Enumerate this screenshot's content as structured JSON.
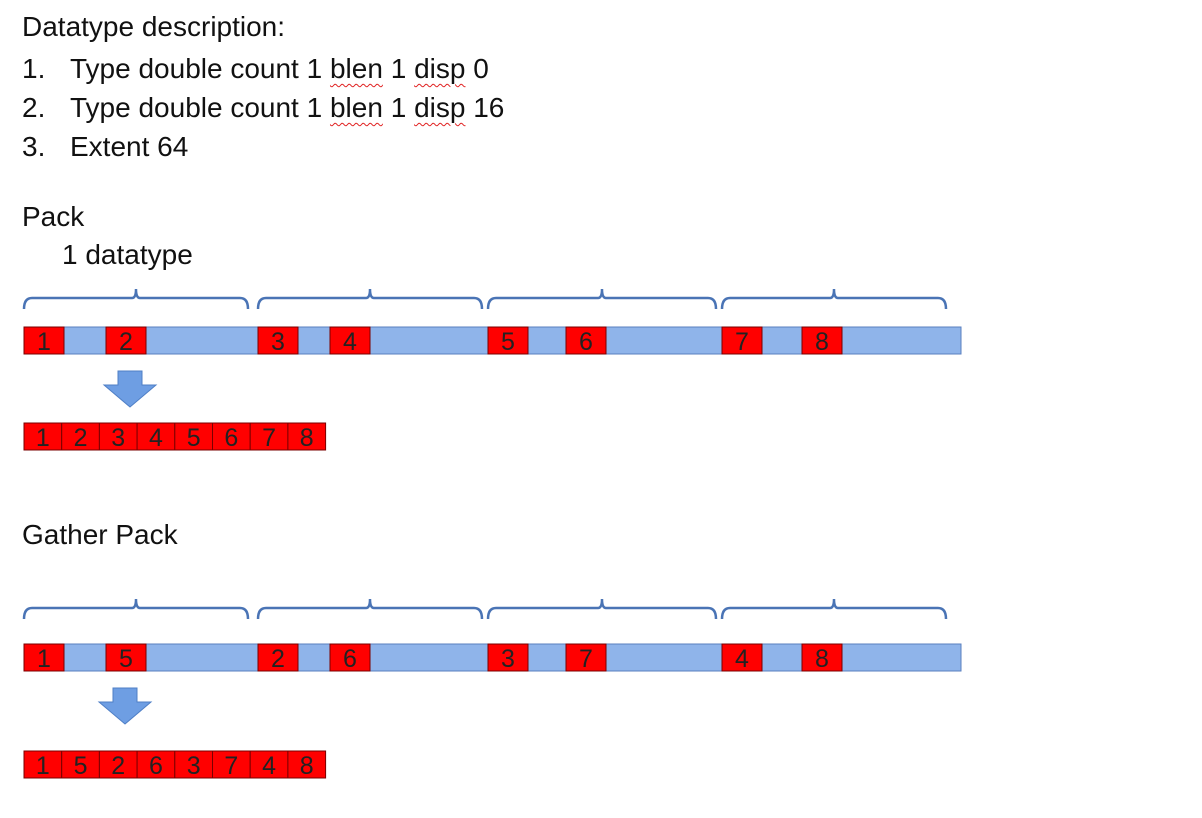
{
  "header": {
    "title": "Datatype description:"
  },
  "description": [
    {
      "num": "1.",
      "pre": "Type double count 1 ",
      "blen": "blen",
      "mid": " 1 ",
      "disp": "disp",
      "post": " 0"
    },
    {
      "num": "2.",
      "pre": "Type double count 1 ",
      "blen": "blen",
      "mid": " 1 ",
      "disp": "disp",
      "post": " 16"
    },
    {
      "num": "3.",
      "text": "Extent 64"
    }
  ],
  "pack": {
    "title": "Pack",
    "datatype_label": "1 datatype",
    "source_elements": [
      "1",
      "2",
      "3",
      "4",
      "5",
      "6",
      "7",
      "8"
    ],
    "packed": [
      "1",
      "2",
      "3",
      "4",
      "5",
      "6",
      "7",
      "8"
    ]
  },
  "gather_pack": {
    "title": "Gather Pack",
    "source_elements": [
      "1",
      "5",
      "2",
      "6",
      "3",
      "7",
      "4",
      "8"
    ],
    "packed": [
      "1",
      "5",
      "2",
      "6",
      "3",
      "7",
      "4",
      "8"
    ]
  },
  "colors": {
    "bar_fill": "#8fb4ea",
    "bar_stroke": "#5a7fbf",
    "cell_fill": "#ff0000",
    "brace": "#4a74b5",
    "arrow": "#6e9ee3"
  }
}
